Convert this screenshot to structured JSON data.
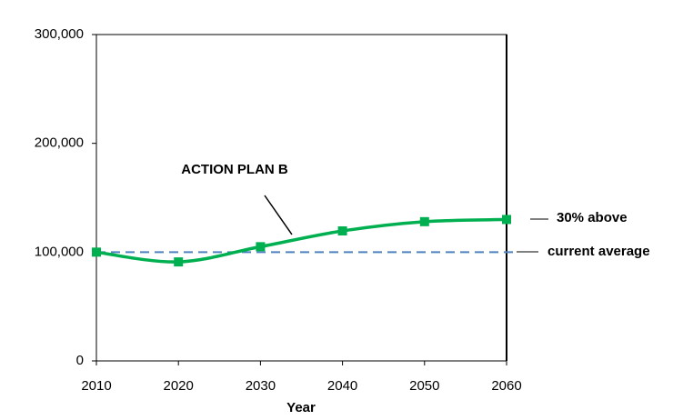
{
  "chart_data": {
    "type": "line",
    "x_label": "Year",
    "x": [
      2010,
      2020,
      2030,
      2040,
      2050,
      2060
    ],
    "series": [
      {
        "name": "ACTION PLAN B",
        "color": "#00b050",
        "values": [
          100000,
          91000,
          105000,
          119500,
          128000,
          130000
        ]
      }
    ],
    "reference_line": {
      "value": 100000,
      "color": "#4f81bd"
    },
    "annotations": [
      "30% above",
      "current average"
    ],
    "xlim": [
      2010,
      2060
    ],
    "xticks": [
      2010,
      2020,
      2030,
      2040,
      2050,
      2060
    ],
    "ylim": [
      0,
      300000
    ],
    "yticks": [
      {
        "value": 0,
        "label": "0"
      },
      {
        "value": 100000,
        "label": "100,000"
      },
      {
        "value": 200000,
        "label": "200,000"
      },
      {
        "value": 300000,
        "label": "300,000"
      }
    ]
  }
}
